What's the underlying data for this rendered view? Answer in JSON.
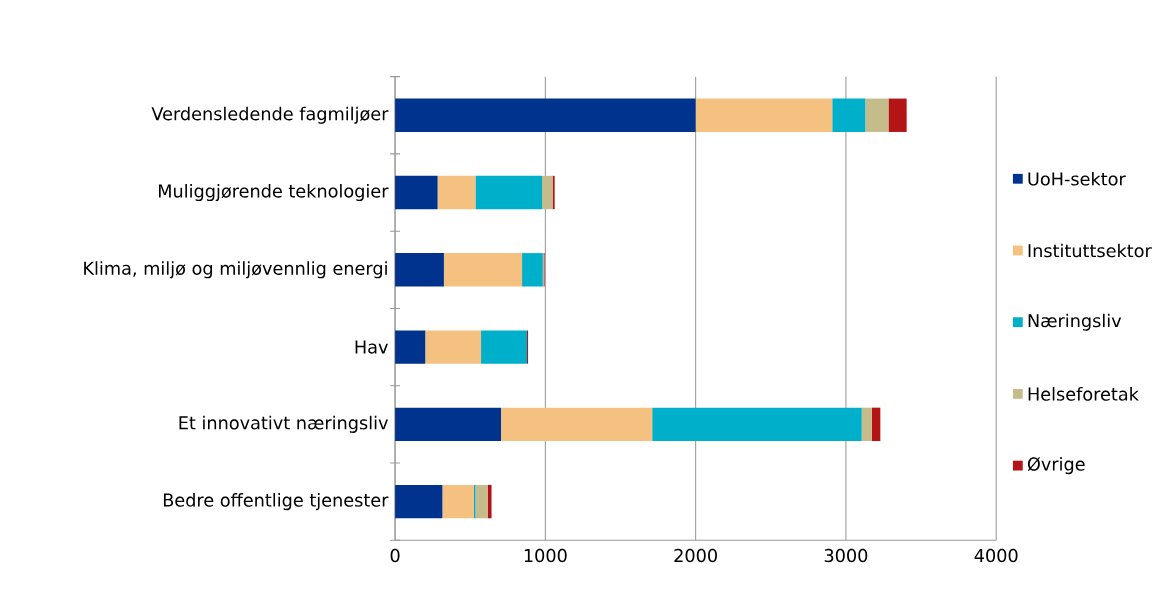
{
  "chart_data": {
    "type": "bar",
    "orientation": "horizontal",
    "stacked": true,
    "categories": [
      "Verdensledende fagmiljøer",
      "Muliggjørende teknologier",
      "Klima, miljø og miljøvennlig energi",
      "Hav",
      "Et innovativt næringsliv",
      "Bedre offentlige tjenester"
    ],
    "series": [
      {
        "name": "UoH-sektor",
        "color": "#00338d",
        "values": [
          2000,
          283,
          325,
          201,
          705,
          315
        ]
      },
      {
        "name": "Instituttsektor",
        "color": "#f4c181",
        "values": [
          909,
          252,
          520,
          371,
          1006,
          210
        ]
      },
      {
        "name": "Næringsliv",
        "color": "#00afca",
        "values": [
          220,
          443,
          138,
          306,
          1394,
          10
        ]
      },
      {
        "name": "Helseforetak",
        "color": "#c6bc8b",
        "values": [
          154,
          70,
          5,
          0,
          68,
          81
        ]
      },
      {
        "name": "Øvrige",
        "color": "#b31516",
        "values": [
          121,
          14,
          7,
          7,
          56,
          26
        ]
      }
    ],
    "xlim": [
      0,
      4000
    ],
    "xticks": [
      0,
      1000,
      2000,
      3000,
      4000
    ],
    "grid": "x",
    "legend": "right"
  }
}
